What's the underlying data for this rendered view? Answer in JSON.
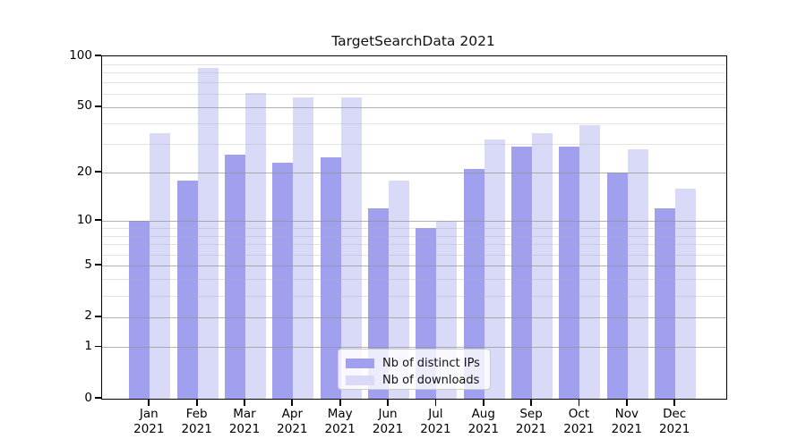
{
  "chart_data": {
    "type": "bar",
    "title": "TargetSearchData 2021",
    "categories": [
      "Jan",
      "Feb",
      "Mar",
      "Apr",
      "May",
      "Jun",
      "Jul",
      "Aug",
      "Sep",
      "Oct",
      "Nov",
      "Dec"
    ],
    "x_year_label": "2021",
    "series": [
      {
        "name": "Nb of distinct IPs",
        "color": "#a0a0ef",
        "values": [
          10,
          18,
          26,
          23,
          25,
          12,
          9,
          21,
          29,
          29,
          20,
          12
        ]
      },
      {
        "name": "Nb of downloads",
        "color": "#d9d9f8",
        "values": [
          35,
          85,
          61,
          57,
          57,
          18,
          10,
          32,
          35,
          39,
          28,
          16
        ]
      }
    ],
    "y_scale": "log1p",
    "ylim": [
      0,
      100
    ],
    "y_ticks": [
      100,
      50,
      20,
      10,
      5,
      2,
      1,
      0
    ],
    "y_minor_gridlines": [
      3,
      4,
      6,
      7,
      8,
      9,
      30,
      40,
      60,
      70,
      80,
      90
    ],
    "grid": true,
    "legend_position": "lower center",
    "spine_color": "#000000",
    "background": "#ffffff"
  }
}
